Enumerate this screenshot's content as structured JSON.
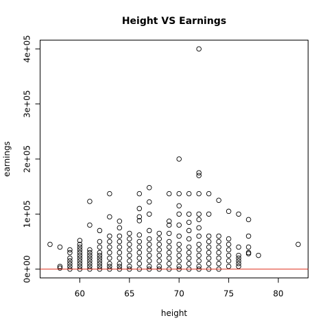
{
  "chart_data": {
    "type": "scatter",
    "title": "Height VS Earnings",
    "x_label": "height",
    "y_label": "earnings",
    "x": [
      57,
      58,
      58,
      58,
      59,
      59,
      59,
      59,
      59,
      59,
      59,
      60,
      60,
      60,
      60,
      60,
      60,
      60,
      60,
      60,
      60,
      60,
      61,
      61,
      61,
      61,
      61,
      61,
      61,
      61,
      61,
      61,
      62,
      62,
      62,
      62,
      62,
      62,
      62,
      62,
      62,
      62,
      63,
      63,
      63,
      63,
      63,
      63,
      63,
      63,
      63,
      63,
      64,
      64,
      64,
      64,
      64,
      64,
      64,
      64,
      64,
      64,
      65,
      65,
      65,
      65,
      65,
      65,
      65,
      65,
      66,
      66,
      66,
      66,
      66,
      66,
      66,
      66,
      66,
      66,
      66,
      67,
      67,
      67,
      67,
      67,
      67,
      67,
      67,
      67,
      67,
      67,
      68,
      68,
      68,
      68,
      68,
      68,
      68,
      68,
      69,
      69,
      69,
      69,
      69,
      69,
      69,
      69,
      69,
      69,
      70,
      70,
      70,
      70,
      70,
      70,
      70,
      70,
      70,
      70,
      70,
      70,
      71,
      71,
      71,
      71,
      71,
      71,
      71,
      71,
      71,
      71,
      72,
      72,
      72,
      72,
      72,
      72,
      72,
      72,
      72,
      72,
      72,
      72,
      72,
      72,
      73,
      73,
      73,
      73,
      73,
      73,
      73,
      73,
      73,
      74,
      74,
      74,
      74,
      74,
      74,
      74,
      74,
      75,
      75,
      75,
      75,
      75,
      75,
      75,
      76,
      76,
      76,
      76,
      76,
      76,
      76,
      77,
      77,
      77,
      77,
      77,
      78,
      82
    ],
    "values": [
      45000,
      40000,
      5000,
      2000,
      35000,
      30000,
      20000,
      15000,
      10000,
      5000,
      0,
      52000,
      45000,
      40000,
      35000,
      30000,
      25000,
      20000,
      15000,
      10000,
      5000,
      0,
      123000,
      80000,
      35000,
      30000,
      25000,
      20000,
      15000,
      10000,
      5000,
      0,
      70000,
      50000,
      40000,
      30000,
      25000,
      20000,
      15000,
      10000,
      5000,
      0,
      137000,
      95000,
      60000,
      50000,
      40000,
      30000,
      20000,
      10000,
      5000,
      0,
      87000,
      75000,
      60000,
      50000,
      40000,
      30000,
      20000,
      10000,
      5000,
      0,
      65000,
      55000,
      45000,
      35000,
      25000,
      15000,
      5000,
      0,
      137000,
      110000,
      95000,
      88000,
      62000,
      50000,
      40000,
      30000,
      20000,
      10000,
      0,
      148000,
      122000,
      100000,
      70000,
      55000,
      45000,
      35000,
      25000,
      15000,
      5000,
      0,
      65000,
      55000,
      45000,
      35000,
      25000,
      15000,
      5000,
      0,
      137000,
      87000,
      80000,
      65000,
      50000,
      40000,
      30000,
      20000,
      10000,
      0,
      200000,
      137000,
      115000,
      100000,
      80000,
      60000,
      45000,
      35000,
      25000,
      15000,
      5000,
      0,
      137000,
      100000,
      85000,
      70000,
      55000,
      40000,
      30000,
      20000,
      10000,
      0,
      400000,
      175000,
      170000,
      137000,
      100000,
      90000,
      75000,
      60000,
      45000,
      35000,
      25000,
      15000,
      5000,
      0,
      137000,
      100000,
      60000,
      50000,
      40000,
      30000,
      20000,
      10000,
      0,
      125000,
      60000,
      50000,
      40000,
      30000,
      20000,
      10000,
      0,
      105000,
      55000,
      45000,
      35000,
      25000,
      15000,
      5000,
      100000,
      40000,
      25000,
      20000,
      15000,
      10000,
      5000,
      90000,
      60000,
      40000,
      30000,
      28000,
      25000,
      45000
    ],
    "color": "#000000",
    "xlim": [
      56,
      83
    ],
    "xticks": [
      60,
      65,
      70,
      75,
      80
    ],
    "ylim": [
      -16000,
      416000
    ],
    "yticks": [
      {
        "value": 0,
        "label": "0e+00"
      },
      {
        "value": 100000,
        "label": "1e+05"
      },
      {
        "value": 200000,
        "label": "2e+05"
      },
      {
        "value": 300000,
        "label": "3e+05"
      },
      {
        "value": 400000,
        "label": "4e+05"
      }
    ],
    "reference_line": {
      "value": 0,
      "color": "#e0301e"
    }
  }
}
